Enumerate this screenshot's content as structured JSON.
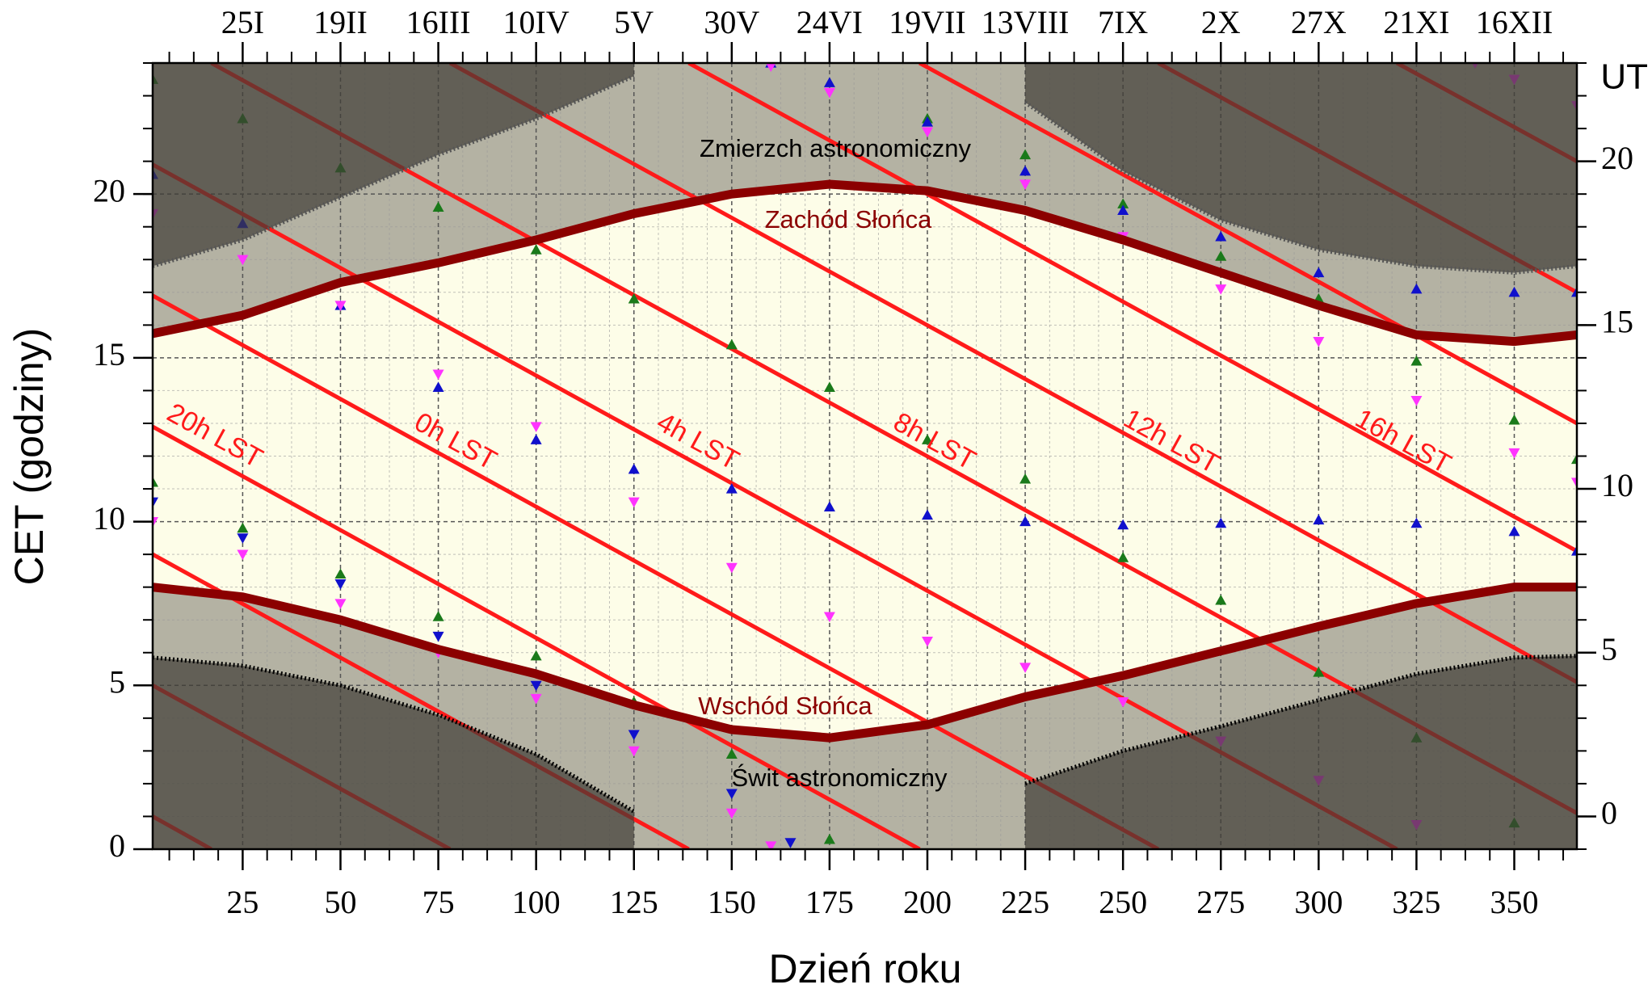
{
  "chart_data": {
    "type": "line",
    "x_label": "Dzień roku",
    "y_label": "CET (godziny)",
    "y2_label": "UT",
    "xlim": [
      2,
      366
    ],
    "ylim": [
      0,
      24
    ],
    "y2lim": [
      -1,
      23
    ],
    "xticks": [
      25,
      50,
      75,
      100,
      125,
      150,
      175,
      200,
      225,
      250,
      275,
      300,
      325,
      350
    ],
    "yticks": [
      0,
      5,
      10,
      15,
      20
    ],
    "y2ticks": [
      0,
      5,
      10,
      15,
      20
    ],
    "top_ticks": [
      {
        "value": 25,
        "label": "25I"
      },
      {
        "value": 50,
        "label": "19II"
      },
      {
        "value": 75,
        "label": "16III"
      },
      {
        "value": 100,
        "label": "10IV"
      },
      {
        "value": 125,
        "label": "5V"
      },
      {
        "value": 150,
        "label": "30V"
      },
      {
        "value": 175,
        "label": "24VI"
      },
      {
        "value": 200,
        "label": "19VII"
      },
      {
        "value": 225,
        "label": "13VIII"
      },
      {
        "value": 250,
        "label": "7IX"
      },
      {
        "value": 275,
        "label": "2X"
      },
      {
        "value": 300,
        "label": "27X"
      },
      {
        "value": 325,
        "label": "21XI"
      },
      {
        "value": 350,
        "label": "16XII"
      }
    ],
    "grid": true,
    "x": [
      2,
      25,
      50,
      75,
      100,
      125,
      150,
      175,
      200,
      225,
      250,
      275,
      300,
      325,
      350,
      366
    ],
    "curves": [
      {
        "name": "Zachód Słońca",
        "color": "#8b0000",
        "values": [
          15.74,
          16.3,
          17.3,
          17.9,
          18.6,
          19.4,
          20.0,
          20.3,
          20.1,
          19.5,
          18.6,
          17.6,
          16.6,
          15.7,
          15.5,
          15.7
        ]
      },
      {
        "name": "Wschód Słońca",
        "color": "#8b0000",
        "values": [
          8.0,
          7.7,
          7.0,
          6.1,
          5.35,
          4.4,
          3.65,
          3.4,
          3.8,
          4.65,
          5.3,
          6.05,
          6.8,
          7.5,
          8.0,
          8.0
        ]
      },
      {
        "name": "Zmierzch astronomiczny",
        "color": "#555555",
        "values": [
          17.8,
          18.6,
          19.9,
          21.2,
          22.3,
          23.6,
          null,
          null,
          null,
          22.8,
          20.7,
          19.2,
          18.3,
          17.8,
          17.6,
          17.8
        ]
      },
      {
        "name": "Świt astronomiczny",
        "color": "#000000",
        "values": [
          5.85,
          5.6,
          5.0,
          4.1,
          2.9,
          1.15,
          null,
          null,
          null,
          2.0,
          3.0,
          3.75,
          4.55,
          5.35,
          5.85,
          5.9
        ]
      }
    ],
    "lst_color": "#ff1a1a",
    "lst_lines": [
      {
        "name": "20h LST",
        "x": [
          2,
          198,
          null,
          198,
          366
        ],
        "values": [
          12.9,
          0,
          null,
          24,
          13.0
        ]
      },
      {
        "name": "0h LST",
        "x": [
          2,
          259,
          null,
          259,
          366
        ],
        "values": [
          16.9,
          0,
          null,
          24,
          17.0
        ]
      },
      {
        "name": "4h LST",
        "x": [
          2,
          320,
          null,
          320,
          366
        ],
        "values": [
          20.9,
          0,
          null,
          24,
          21.0
        ]
      },
      {
        "name": "8h LST",
        "x": [
          2,
          17,
          null,
          17,
          366
        ],
        "values": [
          1.0,
          0,
          null,
          24,
          1.1
        ]
      },
      {
        "name": "12h LST",
        "x": [
          2,
          78,
          null,
          78,
          366
        ],
        "values": [
          5.0,
          0,
          null,
          24,
          5.1
        ]
      },
      {
        "name": "16h LST",
        "x": [
          2,
          139,
          null,
          139,
          366
        ],
        "values": [
          9.0,
          0,
          null,
          24,
          9.1
        ]
      }
    ],
    "markers": [
      {
        "color": "#1a7a1a",
        "marker": "up",
        "x": [
          2,
          25,
          50,
          75,
          100,
          125,
          150,
          175,
          200,
          225,
          250,
          275,
          300,
          325,
          350
        ],
        "values": [
          23.5,
          22.3,
          20.8,
          19.6,
          18.3,
          16.8,
          15.4,
          14.1,
          12.5,
          11.3,
          8.9,
          7.6,
          5.4,
          3.4,
          0.8
        ]
      },
      {
        "color": "#1a7a1a",
        "marker": "up",
        "x": [
          2,
          25,
          50,
          75,
          100,
          125,
          150,
          175
        ],
        "values": [
          11.2,
          9.8,
          8.4,
          7.1,
          5.9,
          4.5,
          2.9,
          0.3
        ]
      },
      {
        "color": "#1a7a1a",
        "marker": "up",
        "x": [
          200,
          225,
          250,
          275,
          300,
          325,
          350,
          366
        ],
        "values": [
          22.3,
          21.2,
          19.7,
          18.1,
          16.8,
          14.9,
          13.1,
          11.9
        ]
      },
      {
        "color": "#1010cc",
        "marker": "up",
        "x": [
          2,
          25,
          50,
          75,
          100,
          125,
          150,
          175,
          200,
          225,
          250,
          275,
          300,
          325,
          350,
          366
        ],
        "values": [
          20.6,
          19.1,
          16.6,
          14.1,
          12.5,
          11.6,
          11.0,
          10.45,
          10.2,
          10.0,
          9.9,
          9.95,
          10.05,
          9.95,
          9.7,
          9.1
        ]
      },
      {
        "color": "#1010cc",
        "marker": "down",
        "x": [
          2,
          25,
          50,
          75,
          100,
          125,
          150,
          165
        ],
        "values": [
          10.6,
          9.5,
          8.1,
          6.5,
          5.0,
          3.5,
          1.7,
          0.2
        ]
      },
      {
        "color": "#1010cc",
        "marker": "up",
        "x": [
          160,
          175,
          200,
          225,
          250,
          275,
          300,
          325,
          350,
          366
        ],
        "values": [
          24,
          23.4,
          22.2,
          20.7,
          19.5,
          18.7,
          17.6,
          17.1,
          17.0,
          17.0
        ]
      },
      {
        "color": "#ff33ff",
        "marker": "down",
        "x": [
          2,
          25,
          50,
          75,
          100,
          125,
          150,
          175,
          200,
          225,
          250,
          275,
          300,
          325
        ],
        "values": [
          19.4,
          18.0,
          16.6,
          14.5,
          12.9,
          10.6,
          8.6,
          7.1,
          6.35,
          5.55,
          4.5,
          3.3,
          2.1,
          0.75
        ]
      },
      {
        "color": "#ff33ff",
        "marker": "down",
        "x": [
          2,
          25,
          50,
          75,
          100,
          125,
          150,
          160
        ],
        "values": [
          10.0,
          9.0,
          7.5,
          6.0,
          4.6,
          3.0,
          1.1,
          0.1
        ]
      },
      {
        "color": "#ff33ff",
        "marker": "down",
        "x": [
          160,
          175,
          200,
          225,
          250,
          275,
          300,
          325,
          350,
          366
        ],
        "values": [
          23.9,
          23.1,
          21.9,
          20.3,
          18.7,
          17.1,
          15.5,
          13.7,
          12.1,
          11.2
        ]
      },
      {
        "color": "#ff33ff",
        "marker": "down",
        "x": [
          340,
          350,
          366
        ],
        "values": [
          24,
          23.5,
          22.7
        ]
      }
    ]
  }
}
